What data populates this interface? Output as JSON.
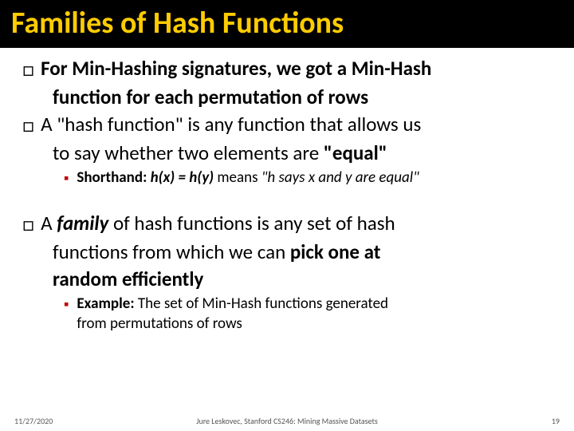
{
  "title": "Families of Hash Functions",
  "bullets": {
    "b1_lead": "For Min-Hashing signatures, we got a Min-Hash",
    "b1_cont": "function for each permutation of rows",
    "b2_lead1": "A \"hash function\" is any function that allows us",
    "b2_lead2": "to say whether two elements are ",
    "b2_equal": "\"equal\"",
    "b2_sub_label": "Shorthand:",
    "b2_sub_eq": "h(x) = h(y)",
    "b2_sub_means": " means ",
    "b2_sub_tail": "\"h  says x and y are equal\"",
    "b3_a": "A ",
    "b3_family": "family",
    "b3_rest1": " of hash functions is any set of hash",
    "b3_line2a": "functions from which we can ",
    "b3_pick": "pick one at",
    "b3_line3": "random efficiently",
    "b3_sub_label": "Example:",
    "b3_sub_text1": " The set of Min-Hash functions generated",
    "b3_sub_text2": "from permutations of rows"
  },
  "footer": {
    "date": "11/27/2020",
    "center": "Jure Leskovec, Stanford CS246: Mining Massive Datasets",
    "page": "19"
  },
  "colors": {
    "title_bg": "#000000",
    "title_fg": "#ffcc00",
    "sub_bullet": "#c00000"
  }
}
